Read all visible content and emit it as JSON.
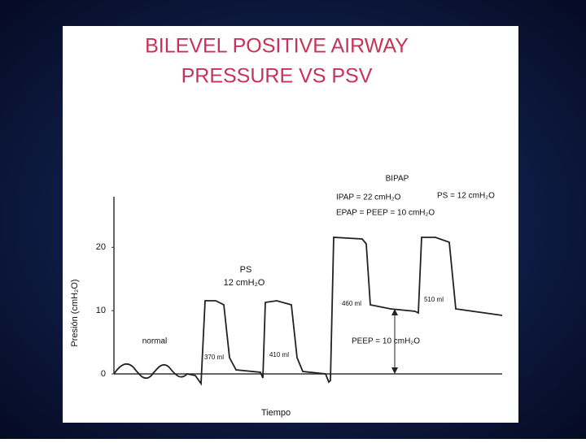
{
  "chart_data": {
    "type": "line",
    "title": "BILEVEL POSITIVE AIRWAY",
    "subtitle": "PRESSURE VS PSV",
    "y_label": "Presión (cmH₂O)",
    "x_label": "Tiempo",
    "ylim": [
      0,
      28
    ],
    "yticks": [
      0,
      10,
      20
    ],
    "annotations": [
      "BIPAP",
      "IPAP = 22 cmH₂O",
      "EPAP = PEEP = 10 cmH₂O",
      "PS = 12 cmH₂O",
      "PS",
      "12 cmH₂O",
      "normal",
      "370 ml",
      "410 ml",
      "460 ml",
      "510 ml",
      "PEEP = 10 cmH₂O"
    ]
  }
}
